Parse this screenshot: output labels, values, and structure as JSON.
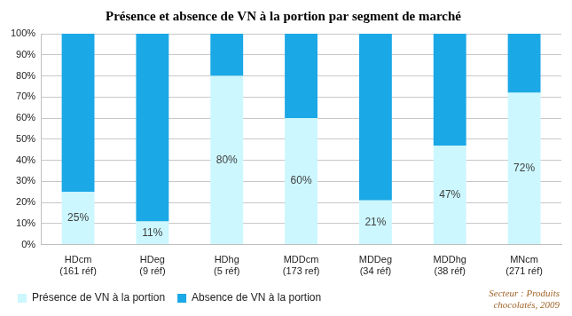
{
  "chart_data": {
    "type": "bar",
    "title": "Présence et absence de VN à la portion par segment de marché",
    "categories": [
      [
        "HDcm",
        "(161 réf)"
      ],
      [
        "HDeg",
        "(9 réf)"
      ],
      [
        "HDhg",
        "(5 réf)"
      ],
      [
        "MDDcm",
        "(173 ref)"
      ],
      [
        "MDDeg",
        "(34 réf)"
      ],
      [
        "MDDhg",
        "(38 réf)"
      ],
      [
        "MNcm",
        "(271 réf)"
      ]
    ],
    "series": [
      {
        "name": "Présence de VN à la portion",
        "color": "#ccf7ff",
        "values": [
          25,
          11,
          80,
          60,
          21,
          47,
          72
        ],
        "data_labels": true,
        "value_labels": [
          "25%",
          "11%",
          "80%",
          "60%",
          "21%",
          "47%",
          "72%"
        ]
      },
      {
        "name": "Absence de VN à la portion",
        "color": "#1aa8e6",
        "values": [
          75,
          89,
          20,
          40,
          79,
          53,
          28
        ]
      }
    ],
    "stacked": true,
    "ylim": [
      0,
      100
    ],
    "yticks": [
      {
        "value": 0,
        "label": "0%"
      },
      {
        "value": 10,
        "label": "10%"
      },
      {
        "value": 20,
        "label": "20%"
      },
      {
        "value": 30,
        "label": "30%"
      },
      {
        "value": 40,
        "label": "40%"
      },
      {
        "value": 50,
        "label": "50%"
      },
      {
        "value": 60,
        "label": "60%"
      },
      {
        "value": 70,
        "label": "70%"
      },
      {
        "value": 80,
        "label": "80%"
      },
      {
        "value": 90,
        "label": "90%"
      },
      {
        "value": 100,
        "label": "100%"
      }
    ],
    "grid": true,
    "legend": "bottom",
    "annotation": [
      "Secteur : Produits",
      "chocolatés, 2009"
    ]
  }
}
